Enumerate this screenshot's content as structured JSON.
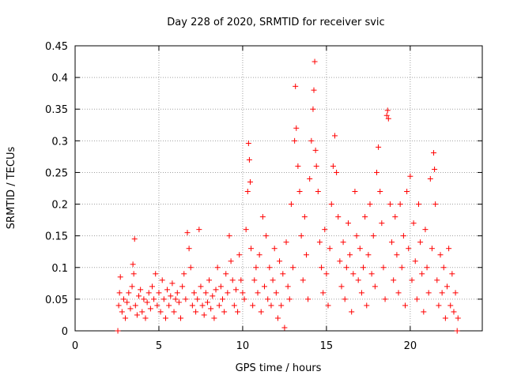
{
  "chart_data": {
    "type": "scatter",
    "title": "Day 228 of 2020, SRMTID for receiver svic",
    "xlabel": "GPS time / hours",
    "ylabel": "SRMTID / TECUs",
    "xlim": [
      0,
      24.3
    ],
    "ylim": [
      0,
      0.45
    ],
    "grid": true,
    "marker": "+",
    "marker_color": "#ff0000",
    "x_ticks": [
      0,
      5,
      10,
      15,
      20
    ],
    "x_tick_labels": [
      "0",
      "5",
      "10",
      "15",
      "20"
    ],
    "y_ticks": [
      0,
      0.05,
      0.1,
      0.15,
      0.2,
      0.25,
      0.3,
      0.35,
      0.4,
      0.45
    ],
    "y_tick_labels": [
      "0",
      "0.05",
      "0.1",
      "0.15",
      "0.2",
      "0.25",
      "0.3",
      "0.35",
      "0.4",
      "0.45"
    ],
    "series": [
      {
        "name": "SRMTID",
        "points": [
          [
            2.55,
            0.0
          ],
          [
            2.6,
            0.04
          ],
          [
            2.65,
            0.06
          ],
          [
            2.7,
            0.085
          ],
          [
            2.8,
            0.03
          ],
          [
            2.9,
            0.05
          ],
          [
            3.0,
            0.02
          ],
          [
            3.1,
            0.045
          ],
          [
            3.2,
            0.06
          ],
          [
            3.3,
            0.035
          ],
          [
            3.4,
            0.07
          ],
          [
            3.45,
            0.105
          ],
          [
            3.5,
            0.09
          ],
          [
            3.55,
            0.145
          ],
          [
            3.6,
            0.04
          ],
          [
            3.7,
            0.025
          ],
          [
            3.8,
            0.055
          ],
          [
            3.9,
            0.065
          ],
          [
            4.0,
            0.03
          ],
          [
            4.1,
            0.05
          ],
          [
            4.2,
            0.02
          ],
          [
            4.3,
            0.045
          ],
          [
            4.4,
            0.06
          ],
          [
            4.5,
            0.035
          ],
          [
            4.6,
            0.07
          ],
          [
            4.7,
            0.05
          ],
          [
            4.8,
            0.09
          ],
          [
            4.9,
            0.04
          ],
          [
            5.0,
            0.06
          ],
          [
            5.1,
            0.03
          ],
          [
            5.2,
            0.08
          ],
          [
            5.3,
            0.05
          ],
          [
            5.4,
            0.02
          ],
          [
            5.5,
            0.065
          ],
          [
            5.6,
            0.04
          ],
          [
            5.7,
            0.055
          ],
          [
            5.8,
            0.075
          ],
          [
            5.9,
            0.03
          ],
          [
            6.0,
            0.05
          ],
          [
            6.1,
            0.06
          ],
          [
            6.2,
            0.045
          ],
          [
            6.3,
            0.02
          ],
          [
            6.4,
            0.07
          ],
          [
            6.5,
            0.09
          ],
          [
            6.6,
            0.05
          ],
          [
            6.7,
            0.155
          ],
          [
            6.8,
            0.13
          ],
          [
            6.9,
            0.1
          ],
          [
            7.0,
            0.04
          ],
          [
            7.1,
            0.06
          ],
          [
            7.2,
            0.03
          ],
          [
            7.3,
            0.05
          ],
          [
            7.4,
            0.16
          ],
          [
            7.5,
            0.07
          ],
          [
            7.6,
            0.04
          ],
          [
            7.7,
            0.025
          ],
          [
            7.8,
            0.06
          ],
          [
            7.9,
            0.045
          ],
          [
            8.0,
            0.08
          ],
          [
            8.1,
            0.035
          ],
          [
            8.2,
            0.055
          ],
          [
            8.3,
            0.02
          ],
          [
            8.4,
            0.065
          ],
          [
            8.5,
            0.1
          ],
          [
            8.6,
            0.04
          ],
          [
            8.7,
            0.07
          ],
          [
            8.8,
            0.05
          ],
          [
            8.9,
            0.03
          ],
          [
            9.0,
            0.09
          ],
          [
            9.1,
            0.06
          ],
          [
            9.2,
            0.15
          ],
          [
            9.3,
            0.11
          ],
          [
            9.4,
            0.08
          ],
          [
            9.5,
            0.04
          ],
          [
            9.6,
            0.065
          ],
          [
            9.7,
            0.03
          ],
          [
            9.8,
            0.12
          ],
          [
            9.9,
            0.08
          ],
          [
            10.0,
            0.06
          ],
          [
            10.1,
            0.05
          ],
          [
            10.2,
            0.16
          ],
          [
            10.3,
            0.22
          ],
          [
            10.35,
            0.296
          ],
          [
            10.4,
            0.27
          ],
          [
            10.45,
            0.235
          ],
          [
            10.5,
            0.13
          ],
          [
            10.6,
            0.04
          ],
          [
            10.7,
            0.08
          ],
          [
            10.8,
            0.1
          ],
          [
            10.9,
            0.06
          ],
          [
            11.0,
            0.12
          ],
          [
            11.1,
            0.03
          ],
          [
            11.2,
            0.18
          ],
          [
            11.3,
            0.07
          ],
          [
            11.4,
            0.15
          ],
          [
            11.5,
            0.05
          ],
          [
            11.6,
            0.1
          ],
          [
            11.7,
            0.04
          ],
          [
            11.8,
            0.08
          ],
          [
            11.9,
            0.13
          ],
          [
            12.0,
            0.06
          ],
          [
            12.1,
            0.02
          ],
          [
            12.2,
            0.11
          ],
          [
            12.3,
            0.04
          ],
          [
            12.4,
            0.09
          ],
          [
            12.5,
            0.005
          ],
          [
            12.6,
            0.14
          ],
          [
            12.7,
            0.07
          ],
          [
            12.8,
            0.05
          ],
          [
            12.9,
            0.2
          ],
          [
            13.0,
            0.1
          ],
          [
            13.1,
            0.3
          ],
          [
            13.15,
            0.386
          ],
          [
            13.2,
            0.32
          ],
          [
            13.3,
            0.26
          ],
          [
            13.4,
            0.22
          ],
          [
            13.5,
            0.15
          ],
          [
            13.6,
            0.08
          ],
          [
            13.7,
            0.18
          ],
          [
            13.8,
            0.12
          ],
          [
            13.9,
            0.05
          ],
          [
            14.0,
            0.24
          ],
          [
            14.1,
            0.3
          ],
          [
            14.2,
            0.35
          ],
          [
            14.25,
            0.38
          ],
          [
            14.3,
            0.425
          ],
          [
            14.35,
            0.285
          ],
          [
            14.4,
            0.26
          ],
          [
            14.5,
            0.22
          ],
          [
            14.6,
            0.14
          ],
          [
            14.7,
            0.1
          ],
          [
            14.8,
            0.06
          ],
          [
            14.9,
            0.16
          ],
          [
            15.0,
            0.09
          ],
          [
            15.1,
            0.04
          ],
          [
            15.2,
            0.13
          ],
          [
            15.3,
            0.2
          ],
          [
            15.4,
            0.26
          ],
          [
            15.5,
            0.308
          ],
          [
            15.6,
            0.25
          ],
          [
            15.7,
            0.18
          ],
          [
            15.8,
            0.11
          ],
          [
            15.9,
            0.07
          ],
          [
            16.0,
            0.14
          ],
          [
            16.1,
            0.05
          ],
          [
            16.2,
            0.1
          ],
          [
            16.3,
            0.17
          ],
          [
            16.4,
            0.12
          ],
          [
            16.5,
            0.03
          ],
          [
            16.6,
            0.09
          ],
          [
            16.7,
            0.22
          ],
          [
            16.8,
            0.15
          ],
          [
            16.9,
            0.08
          ],
          [
            17.0,
            0.13
          ],
          [
            17.1,
            0.06
          ],
          [
            17.2,
            0.1
          ],
          [
            17.3,
            0.18
          ],
          [
            17.4,
            0.04
          ],
          [
            17.5,
            0.12
          ],
          [
            17.6,
            0.2
          ],
          [
            17.7,
            0.09
          ],
          [
            17.8,
            0.15
          ],
          [
            17.9,
            0.07
          ],
          [
            18.0,
            0.25
          ],
          [
            18.1,
            0.29
          ],
          [
            18.2,
            0.22
          ],
          [
            18.3,
            0.17
          ],
          [
            18.4,
            0.1
          ],
          [
            18.5,
            0.05
          ],
          [
            18.6,
            0.34
          ],
          [
            18.65,
            0.348
          ],
          [
            18.7,
            0.335
          ],
          [
            18.8,
            0.2
          ],
          [
            18.9,
            0.14
          ],
          [
            19.0,
            0.08
          ],
          [
            19.1,
            0.18
          ],
          [
            19.2,
            0.12
          ],
          [
            19.3,
            0.06
          ],
          [
            19.4,
            0.2
          ],
          [
            19.5,
            0.1
          ],
          [
            19.6,
            0.15
          ],
          [
            19.7,
            0.04
          ],
          [
            19.8,
            0.22
          ],
          [
            19.9,
            0.13
          ],
          [
            20.0,
            0.244
          ],
          [
            20.1,
            0.08
          ],
          [
            20.2,
            0.17
          ],
          [
            20.3,
            0.11
          ],
          [
            20.4,
            0.05
          ],
          [
            20.5,
            0.2
          ],
          [
            20.6,
            0.14
          ],
          [
            20.7,
            0.09
          ],
          [
            20.8,
            0.03
          ],
          [
            20.9,
            0.16
          ],
          [
            21.0,
            0.1
          ],
          [
            21.1,
            0.06
          ],
          [
            21.2,
            0.24
          ],
          [
            21.3,
            0.13
          ],
          [
            21.4,
            0.281
          ],
          [
            21.45,
            0.255
          ],
          [
            21.5,
            0.2
          ],
          [
            21.6,
            0.08
          ],
          [
            21.7,
            0.04
          ],
          [
            21.8,
            0.12
          ],
          [
            21.9,
            0.06
          ],
          [
            22.0,
            0.1
          ],
          [
            22.1,
            0.02
          ],
          [
            22.2,
            0.07
          ],
          [
            22.3,
            0.13
          ],
          [
            22.4,
            0.04
          ],
          [
            22.5,
            0.09
          ],
          [
            22.6,
            0.03
          ],
          [
            22.7,
            0.06
          ],
          [
            22.8,
            0.0
          ],
          [
            22.85,
            0.02
          ]
        ]
      }
    ]
  }
}
